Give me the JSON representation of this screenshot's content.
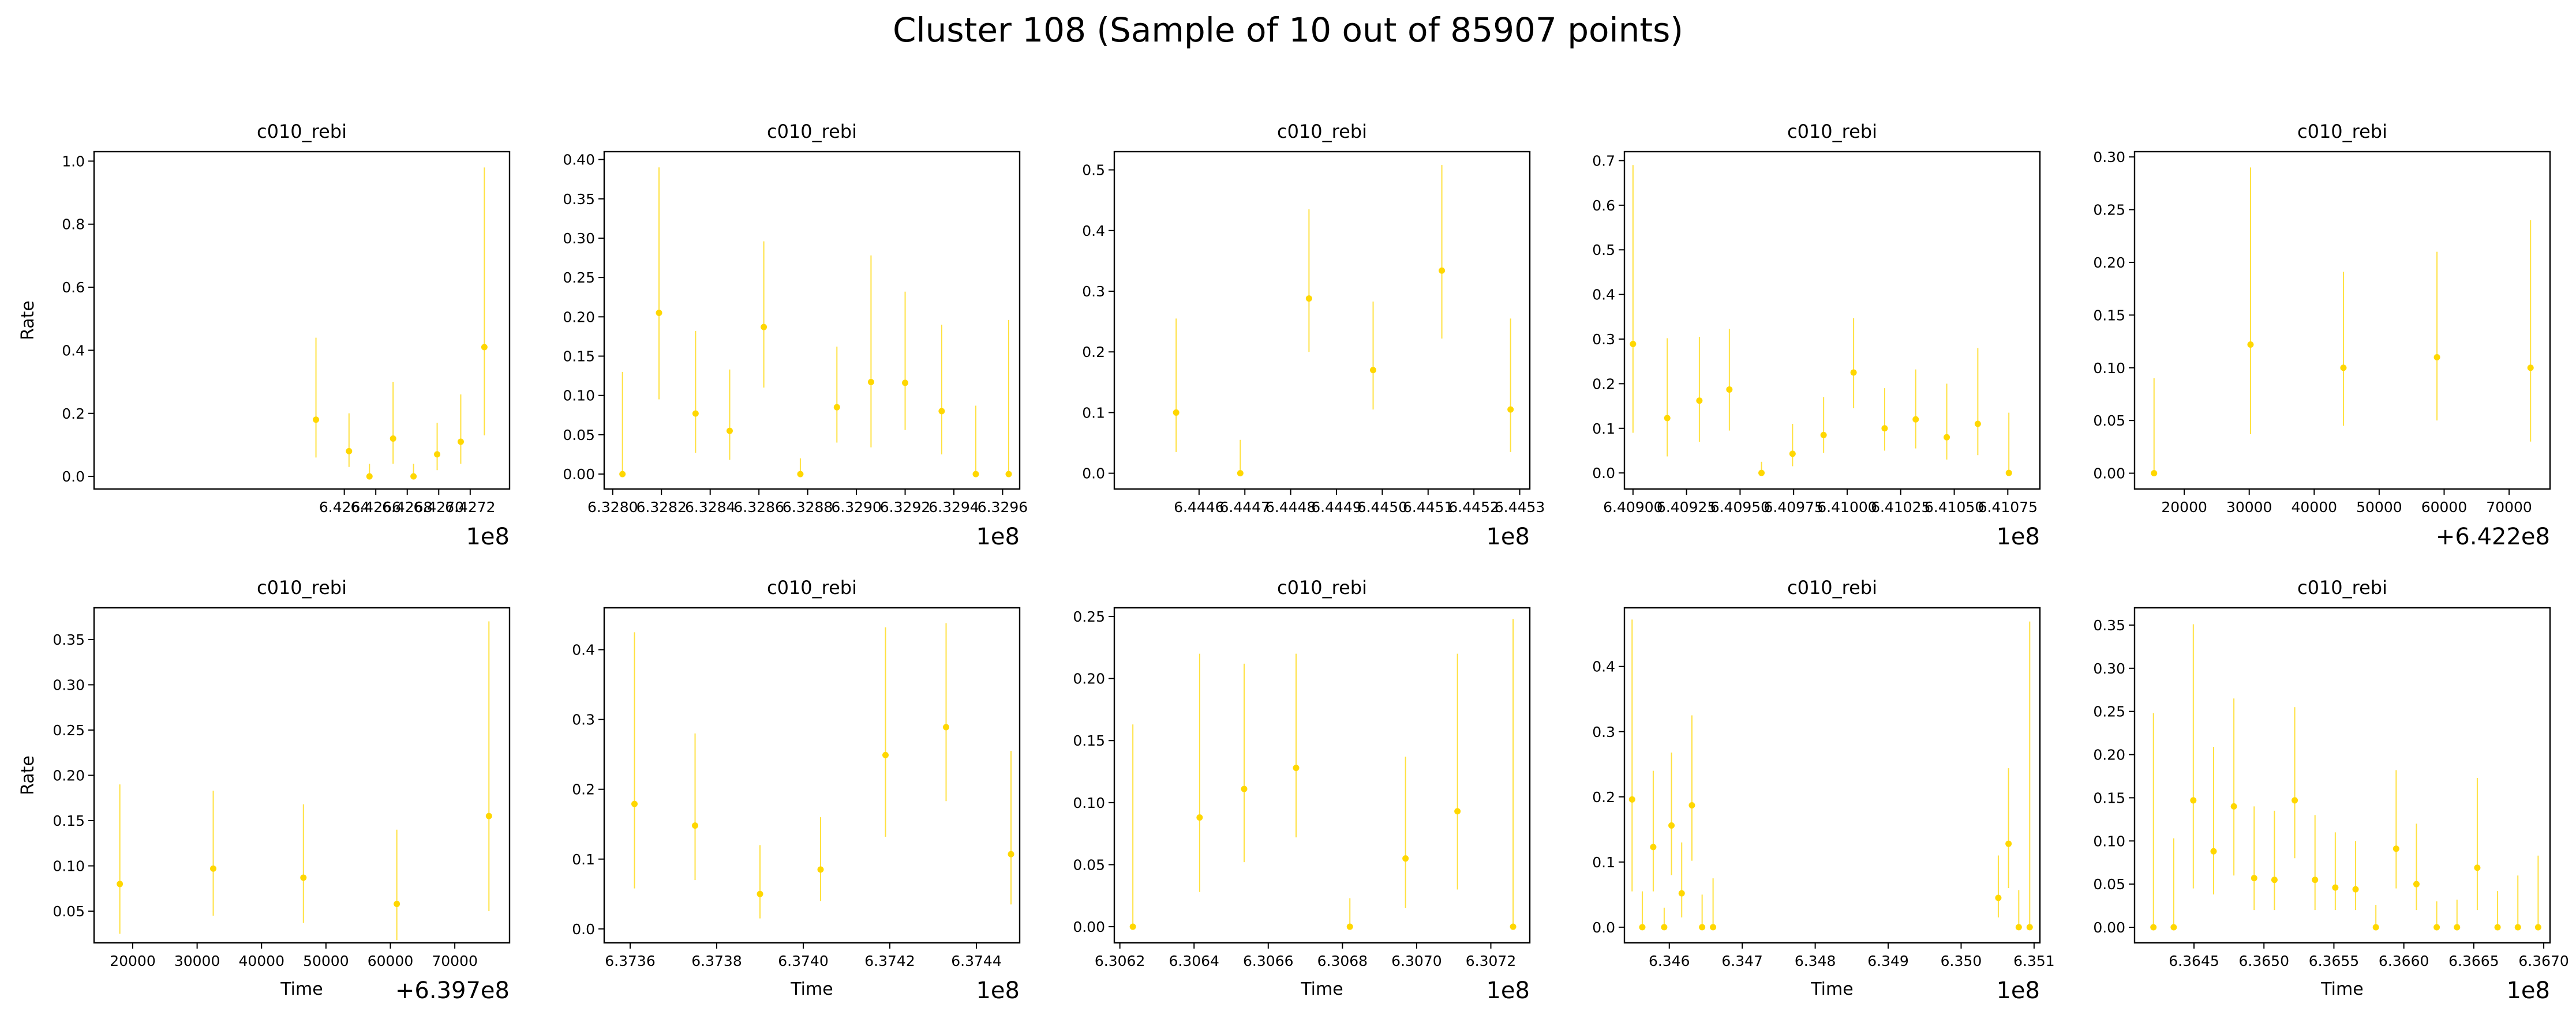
{
  "figure": {
    "title": "Cluster 108 (Sample of 10 out of 85907 points)",
    "marker_color": "#FFD700"
  },
  "chart_data": [
    {
      "type": "scatter",
      "title": "c010_rebi",
      "xlabel": "",
      "ylabel": "Rate",
      "xlim": [
        642481000,
        642745000
      ],
      "ylim": [
        -0.04,
        1.03
      ],
      "xticks": [
        642640000,
        642660000,
        642680000,
        642700000,
        642720000
      ],
      "xtick_labels": [
        "6.4264",
        "6.4266",
        "6.4268",
        "6.4270",
        "6.4272"
      ],
      "yticks": [
        0.0,
        0.2,
        0.4,
        0.6,
        0.8,
        1.0
      ],
      "ytick_labels": [
        "0.0",
        "0.2",
        "0.4",
        "0.6",
        "0.8",
        "1.0"
      ],
      "offset_text": "1e8",
      "points": [
        {
          "x": 642622000,
          "y": 0.18,
          "lo": 0.06,
          "hi": 0.44
        },
        {
          "x": 642643000,
          "y": 0.08,
          "lo": 0.03,
          "hi": 0.2
        },
        {
          "x": 642656000,
          "y": 0.0,
          "lo": 0.0,
          "hi": 0.04
        },
        {
          "x": 642671000,
          "y": 0.12,
          "lo": 0.04,
          "hi": 0.3
        },
        {
          "x": 642684000,
          "y": 0.0,
          "lo": 0.0,
          "hi": 0.04
        },
        {
          "x": 642699000,
          "y": 0.07,
          "lo": 0.02,
          "hi": 0.17
        },
        {
          "x": 642714000,
          "y": 0.11,
          "lo": 0.04,
          "hi": 0.26
        },
        {
          "x": 642729000,
          "y": 0.41,
          "lo": 0.13,
          "hi": 0.98
        }
      ]
    },
    {
      "type": "scatter",
      "title": "c010_rebi",
      "xlabel": "",
      "ylabel": "",
      "xlim": [
        632796500,
        632967000
      ],
      "ylim": [
        -0.019,
        0.41
      ],
      "xticks": [
        632800000,
        632820000,
        632840000,
        632860000,
        632880000,
        632900000,
        632920000,
        632940000,
        632960000
      ],
      "xtick_labels": [
        "6.3280",
        "6.3282",
        "6.3284",
        "6.3286",
        "6.3288",
        "6.3290",
        "6.3292",
        "6.3294",
        "6.3296"
      ],
      "yticks": [
        0.0,
        0.05,
        0.1,
        0.15,
        0.2,
        0.25,
        0.3,
        0.35,
        0.4
      ],
      "ytick_labels": [
        "0.00",
        "0.05",
        "0.10",
        "0.15",
        "0.20",
        "0.25",
        "0.30",
        "0.35",
        "0.40"
      ],
      "offset_text": "1e8",
      "points": [
        {
          "x": 632804000,
          "y": 0.0,
          "lo": 0.0,
          "hi": 0.13
        },
        {
          "x": 632819000,
          "y": 0.205,
          "lo": 0.095,
          "hi": 0.39
        },
        {
          "x": 632834000,
          "y": 0.077,
          "lo": 0.027,
          "hi": 0.182
        },
        {
          "x": 632848000,
          "y": 0.055,
          "lo": 0.018,
          "hi": 0.133
        },
        {
          "x": 632862000,
          "y": 0.187,
          "lo": 0.11,
          "hi": 0.296
        },
        {
          "x": 632877000,
          "y": 0.0,
          "lo": 0.0,
          "hi": 0.02
        },
        {
          "x": 632892000,
          "y": 0.085,
          "lo": 0.04,
          "hi": 0.162
        },
        {
          "x": 632906000,
          "y": 0.117,
          "lo": 0.034,
          "hi": 0.278
        },
        {
          "x": 632920000,
          "y": 0.116,
          "lo": 0.056,
          "hi": 0.232
        },
        {
          "x": 632935000,
          "y": 0.08,
          "lo": 0.025,
          "hi": 0.19
        },
        {
          "x": 632949000,
          "y": 0.0,
          "lo": 0.0,
          "hi": 0.087
        },
        {
          "x": 632962500,
          "y": 0.0,
          "lo": 0.0,
          "hi": 0.196
        }
      ]
    },
    {
      "type": "scatter",
      "title": "c010_rebi",
      "xlabel": "",
      "ylabel": "",
      "xlim": [
        644441500,
        644532200
      ],
      "ylim": [
        -0.026,
        0.53
      ],
      "xticks": [
        644460000,
        644470000,
        644480000,
        644490000,
        644500000,
        644510000,
        644520000,
        644530000
      ],
      "xtick_labels": [
        "6.4446",
        "6.4447",
        "6.4448",
        "6.4449",
        "6.4450",
        "6.4451",
        "6.4452",
        "6.4453"
      ],
      "yticks": [
        0.0,
        0.1,
        0.2,
        0.3,
        0.4,
        0.5
      ],
      "ytick_labels": [
        "0.0",
        "0.1",
        "0.2",
        "0.3",
        "0.4",
        "0.5"
      ],
      "offset_text": "1e8",
      "points": [
        {
          "x": 644455000,
          "y": 0.1,
          "lo": 0.035,
          "hi": 0.255
        },
        {
          "x": 644469000,
          "y": 0.0,
          "lo": 0.0,
          "hi": 0.055
        },
        {
          "x": 644484000,
          "y": 0.288,
          "lo": 0.2,
          "hi": 0.435
        },
        {
          "x": 644498000,
          "y": 0.17,
          "lo": 0.105,
          "hi": 0.283
        },
        {
          "x": 644513000,
          "y": 0.334,
          "lo": 0.222,
          "hi": 0.508
        },
        {
          "x": 644528000,
          "y": 0.105,
          "lo": 0.035,
          "hi": 0.255
        }
      ]
    },
    {
      "type": "scatter",
      "title": "c010_rebi",
      "xlabel": "",
      "ylabel": "",
      "xlim": [
        640896000,
        641090000
      ],
      "ylim": [
        -0.036,
        0.72
      ],
      "xticks": [
        640900000,
        640925000,
        640950000,
        640975000,
        641000000,
        641025000,
        641050000,
        641075000
      ],
      "xtick_labels": [
        "6.40900",
        "6.40925",
        "6.40950",
        "6.40975",
        "6.41000",
        "6.41025",
        "6.41050",
        "6.41075"
      ],
      "yticks": [
        0.0,
        0.1,
        0.2,
        0.3,
        0.4,
        0.5,
        0.6,
        0.7
      ],
      "ytick_labels": [
        "0.0",
        "0.1",
        "0.2",
        "0.3",
        "0.4",
        "0.5",
        "0.6",
        "0.7"
      ],
      "offset_text": "1e8",
      "points": [
        {
          "x": 640900000,
          "y": 0.289,
          "lo": 0.09,
          "hi": 0.69
        },
        {
          "x": 640916000,
          "y": 0.123,
          "lo": 0.037,
          "hi": 0.302
        },
        {
          "x": 640931000,
          "y": 0.162,
          "lo": 0.07,
          "hi": 0.305
        },
        {
          "x": 640945000,
          "y": 0.187,
          "lo": 0.095,
          "hi": 0.323
        },
        {
          "x": 640960000,
          "y": 0.0,
          "lo": 0.0,
          "hi": 0.025
        },
        {
          "x": 640974500,
          "y": 0.043,
          "lo": 0.015,
          "hi": 0.11
        },
        {
          "x": 640989000,
          "y": 0.085,
          "lo": 0.045,
          "hi": 0.17
        },
        {
          "x": 641003000,
          "y": 0.225,
          "lo": 0.145,
          "hi": 0.347
        },
        {
          "x": 641017500,
          "y": 0.1,
          "lo": 0.05,
          "hi": 0.19
        },
        {
          "x": 641032000,
          "y": 0.12,
          "lo": 0.055,
          "hi": 0.232
        },
        {
          "x": 641046500,
          "y": 0.08,
          "lo": 0.03,
          "hi": 0.2
        },
        {
          "x": 641061000,
          "y": 0.11,
          "lo": 0.04,
          "hi": 0.28
        },
        {
          "x": 641075500,
          "y": 0.0,
          "lo": 0.0,
          "hi": 0.135
        }
      ]
    },
    {
      "type": "scatter",
      "title": "c010_rebi",
      "xlabel": "",
      "ylabel": "",
      "xlim": [
        642212350,
        642276300
      ],
      "ylim": [
        -0.015,
        0.305
      ],
      "xticks": [
        642220000,
        642230000,
        642240000,
        642250000,
        642260000,
        642270000
      ],
      "xtick_labels": [
        "20000",
        "30000",
        "40000",
        "50000",
        "60000",
        "70000"
      ],
      "yticks": [
        0.0,
        0.05,
        0.1,
        0.15,
        0.2,
        0.25,
        0.3
      ],
      "ytick_labels": [
        "0.00",
        "0.05",
        "0.10",
        "0.15",
        "0.20",
        "0.25",
        "0.30"
      ],
      "offset_text": "+6.422e8",
      "points": [
        {
          "x": 642215350,
          "y": 0.0,
          "lo": 0.0,
          "hi": 0.09
        },
        {
          "x": 642230200,
          "y": 0.122,
          "lo": 0.037,
          "hi": 0.29
        },
        {
          "x": 642244500,
          "y": 0.1,
          "lo": 0.045,
          "hi": 0.191
        },
        {
          "x": 642258900,
          "y": 0.11,
          "lo": 0.05,
          "hi": 0.21
        },
        {
          "x": 642273300,
          "y": 0.1,
          "lo": 0.03,
          "hi": 0.24
        }
      ]
    },
    {
      "type": "scatter",
      "title": "c010_rebi",
      "xlabel": "Time",
      "ylabel": "Rate",
      "xlim": [
        639714000,
        639778500
      ],
      "ylim": [
        0.015,
        0.385
      ],
      "xticks": [
        639720000,
        639730000,
        639740000,
        639750000,
        639760000,
        639770000
      ],
      "xtick_labels": [
        "20000",
        "30000",
        "40000",
        "50000",
        "60000",
        "70000"
      ],
      "yticks": [
        0.05,
        0.1,
        0.15,
        0.2,
        0.25,
        0.3,
        0.35
      ],
      "ytick_labels": [
        "0.05",
        "0.10",
        "0.15",
        "0.20",
        "0.25",
        "0.30",
        "0.35"
      ],
      "offset_text": "+6.397e8",
      "points": [
        {
          "x": 639718000,
          "y": 0.08,
          "lo": 0.025,
          "hi": 0.19
        },
        {
          "x": 639732500,
          "y": 0.097,
          "lo": 0.045,
          "hi": 0.183
        },
        {
          "x": 639746500,
          "y": 0.087,
          "lo": 0.037,
          "hi": 0.168
        },
        {
          "x": 639761000,
          "y": 0.058,
          "lo": 0.018,
          "hi": 0.14
        },
        {
          "x": 639775300,
          "y": 0.155,
          "lo": 0.05,
          "hi": 0.37
        }
      ]
    },
    {
      "type": "scatter",
      "title": "c010_rebi",
      "xlabel": "Time",
      "ylabel": "",
      "xlim": [
        637354000,
        637450000
      ],
      "ylim": [
        -0.02,
        0.46
      ],
      "xticks": [
        637360000,
        637380000,
        637400000,
        637420000,
        637440000
      ],
      "xtick_labels": [
        "6.3736",
        "6.3738",
        "6.3740",
        "6.3742",
        "6.3744"
      ],
      "yticks": [
        0.0,
        0.1,
        0.2,
        0.3,
        0.4
      ],
      "ytick_labels": [
        "0.0",
        "0.1",
        "0.2",
        "0.3",
        "0.4"
      ],
      "offset_text": "1e8",
      "points": [
        {
          "x": 637361000,
          "y": 0.179,
          "lo": 0.058,
          "hi": 0.425
        },
        {
          "x": 637375000,
          "y": 0.148,
          "lo": 0.07,
          "hi": 0.28
        },
        {
          "x": 637390000,
          "y": 0.05,
          "lo": 0.015,
          "hi": 0.12
        },
        {
          "x": 637404000,
          "y": 0.085,
          "lo": 0.04,
          "hi": 0.16
        },
        {
          "x": 637419000,
          "y": 0.249,
          "lo": 0.132,
          "hi": 0.432
        },
        {
          "x": 637433000,
          "y": 0.289,
          "lo": 0.183,
          "hi": 0.438
        },
        {
          "x": 637448000,
          "y": 0.107,
          "lo": 0.035,
          "hi": 0.255
        }
      ]
    },
    {
      "type": "scatter",
      "title": "c010_rebi",
      "xlabel": "Time",
      "ylabel": "",
      "xlim": [
        630618500,
        630730500
      ],
      "ylim": [
        -0.013,
        0.257
      ],
      "xticks": [
        630620000,
        630640000,
        630660000,
        630680000,
        630700000,
        630720000
      ],
      "xtick_labels": [
        "6.3062",
        "6.3064",
        "6.3066",
        "6.3068",
        "6.3070",
        "6.3072"
      ],
      "yticks": [
        0.0,
        0.05,
        0.1,
        0.15,
        0.2,
        0.25
      ],
      "ytick_labels": [
        "0.00",
        "0.05",
        "0.10",
        "0.15",
        "0.20",
        "0.25"
      ],
      "offset_text": "1e8",
      "points": [
        {
          "x": 630623500,
          "y": 0.0,
          "lo": 0.0,
          "hi": 0.163
        },
        {
          "x": 630641500,
          "y": 0.088,
          "lo": 0.028,
          "hi": 0.22
        },
        {
          "x": 630653500,
          "y": 0.111,
          "lo": 0.052,
          "hi": 0.212
        },
        {
          "x": 630667500,
          "y": 0.128,
          "lo": 0.072,
          "hi": 0.22
        },
        {
          "x": 630682000,
          "y": 0.0,
          "lo": 0.0,
          "hi": 0.023
        },
        {
          "x": 630697000,
          "y": 0.055,
          "lo": 0.015,
          "hi": 0.137
        },
        {
          "x": 630711000,
          "y": 0.093,
          "lo": 0.03,
          "hi": 0.22
        },
        {
          "x": 630726000,
          "y": 0.0,
          "lo": 0.0,
          "hi": 0.248
        }
      ]
    },
    {
      "type": "scatter",
      "title": "c010_rebi",
      "xlabel": "Time",
      "ylabel": "",
      "xlim": [
        634538500,
        635108000
      ],
      "ylim": [
        -0.024,
        0.49
      ],
      "xticks": [
        634600000,
        634700000,
        634800000,
        634900000,
        635000000,
        635100000
      ],
      "xtick_labels": [
        "6.346",
        "6.347",
        "6.348",
        "6.349",
        "6.350",
        "6.351"
      ],
      "yticks": [
        0.0,
        0.1,
        0.2,
        0.3,
        0.4
      ],
      "ytick_labels": [
        "0.0",
        "0.1",
        "0.2",
        "0.3",
        "0.4"
      ],
      "offset_text": "1e8",
      "points": [
        {
          "x": 634549000,
          "y": 0.196,
          "lo": 0.055,
          "hi": 0.472
        },
        {
          "x": 634563000,
          "y": 0.0,
          "lo": 0.0,
          "hi": 0.055
        },
        {
          "x": 634578000,
          "y": 0.123,
          "lo": 0.055,
          "hi": 0.24
        },
        {
          "x": 634593000,
          "y": 0.0,
          "lo": 0.0,
          "hi": 0.03
        },
        {
          "x": 634603000,
          "y": 0.156,
          "lo": 0.08,
          "hi": 0.268
        },
        {
          "x": 634617000,
          "y": 0.052,
          "lo": 0.015,
          "hi": 0.13
        },
        {
          "x": 634631000,
          "y": 0.187,
          "lo": 0.102,
          "hi": 0.325
        },
        {
          "x": 634645000,
          "y": 0.0,
          "lo": 0.0,
          "hi": 0.05
        },
        {
          "x": 634660000,
          "y": 0.0,
          "lo": 0.0,
          "hi": 0.075
        },
        {
          "x": 635051000,
          "y": 0.045,
          "lo": 0.015,
          "hi": 0.11
        },
        {
          "x": 635065000,
          "y": 0.128,
          "lo": 0.06,
          "hi": 0.244
        },
        {
          "x": 635079000,
          "y": 0.0,
          "lo": 0.0,
          "hi": 0.057
        },
        {
          "x": 635094000,
          "y": 0.0,
          "lo": 0.0,
          "hi": 0.469
        }
      ]
    },
    {
      "type": "scatter",
      "title": "c010_rebi",
      "xlabel": "Time",
      "ylabel": "",
      "xlim": [
        636407500,
        636704500
      ],
      "ylim": [
        -0.018,
        0.37
      ],
      "xticks": [
        636450000,
        636500000,
        636550000,
        636600000,
        636650000,
        636700000
      ],
      "xtick_labels": [
        "6.3645",
        "6.3650",
        "6.3655",
        "6.3660",
        "6.3665",
        "6.3670"
      ],
      "yticks": [
        0.0,
        0.05,
        0.1,
        0.15,
        0.2,
        0.25,
        0.3,
        0.35
      ],
      "ytick_labels": [
        "0.00",
        "0.05",
        "0.10",
        "0.15",
        "0.20",
        "0.25",
        "0.30",
        "0.35"
      ],
      "offset_text": "1e8",
      "points": [
        {
          "x": 636421000,
          "y": 0.0,
          "lo": 0.0,
          "hi": 0.248
        },
        {
          "x": 636435500,
          "y": 0.0,
          "lo": 0.0,
          "hi": 0.103
        },
        {
          "x": 636449500,
          "y": 0.147,
          "lo": 0.045,
          "hi": 0.351
        },
        {
          "x": 636464000,
          "y": 0.088,
          "lo": 0.038,
          "hi": 0.209
        },
        {
          "x": 636478500,
          "y": 0.14,
          "lo": 0.06,
          "hi": 0.265
        },
        {
          "x": 636493000,
          "y": 0.057,
          "lo": 0.02,
          "hi": 0.14
        },
        {
          "x": 636507500,
          "y": 0.055,
          "lo": 0.02,
          "hi": 0.135
        },
        {
          "x": 636522000,
          "y": 0.147,
          "lo": 0.08,
          "hi": 0.255
        },
        {
          "x": 636536500,
          "y": 0.055,
          "lo": 0.02,
          "hi": 0.13
        },
        {
          "x": 636551000,
          "y": 0.046,
          "lo": 0.02,
          "hi": 0.11
        },
        {
          "x": 636565500,
          "y": 0.044,
          "lo": 0.02,
          "hi": 0.1
        },
        {
          "x": 636580000,
          "y": 0.0,
          "lo": 0.0,
          "hi": 0.026
        },
        {
          "x": 636594500,
          "y": 0.091,
          "lo": 0.045,
          "hi": 0.182
        },
        {
          "x": 636609000,
          "y": 0.05,
          "lo": 0.02,
          "hi": 0.12
        },
        {
          "x": 636623500,
          "y": 0.0,
          "lo": 0.0,
          "hi": 0.03
        },
        {
          "x": 636638000,
          "y": 0.0,
          "lo": 0.0,
          "hi": 0.032
        },
        {
          "x": 636652500,
          "y": 0.069,
          "lo": 0.02,
          "hi": 0.173
        },
        {
          "x": 636667000,
          "y": 0.0,
          "lo": 0.0,
          "hi": 0.042
        },
        {
          "x": 636681500,
          "y": 0.0,
          "lo": 0.0,
          "hi": 0.06
        },
        {
          "x": 636696000,
          "y": 0.0,
          "lo": 0.0,
          "hi": 0.083
        }
      ]
    }
  ]
}
